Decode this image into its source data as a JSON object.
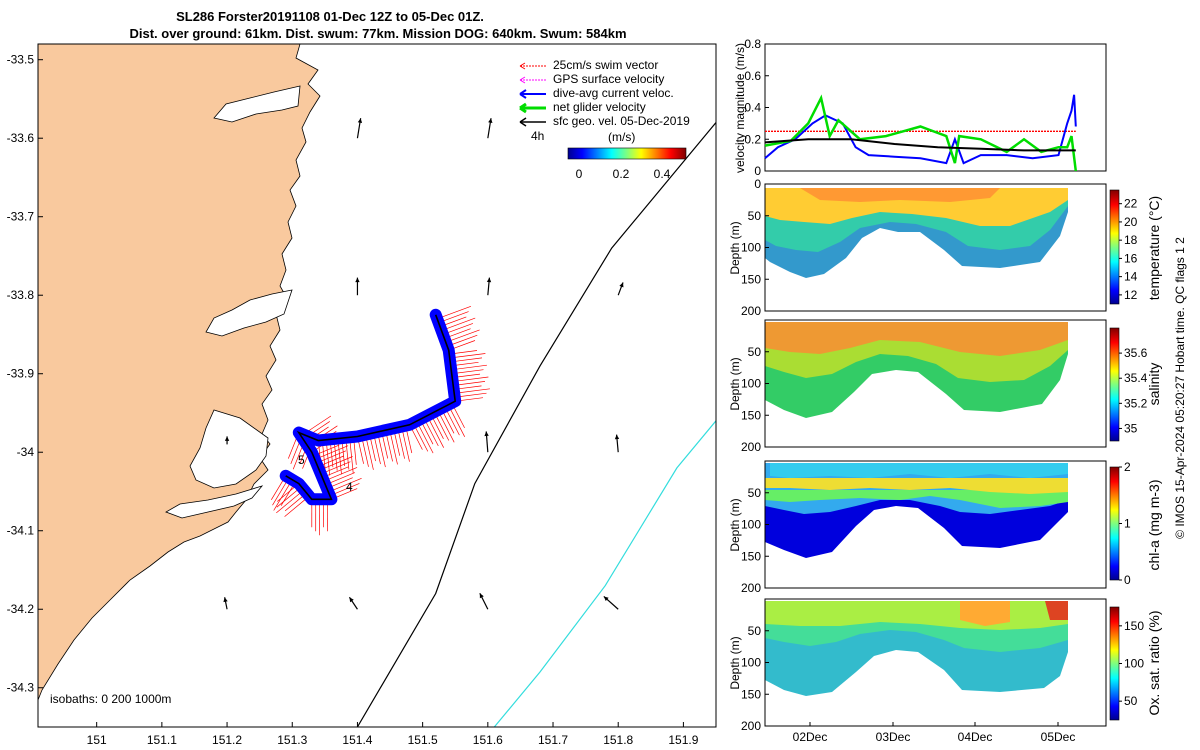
{
  "figure": {
    "title_line1": "SL286 Forster20191108 01-Dec 12Z to 05-Dec 01Z.",
    "title_line2": "Dist. over ground: 61km. Dist. swum: 77km. Mission DOG: 640km. Swum: 584km",
    "credit": "© IMOS 15-Apr-2024 05:20:27 Hobart time. QC flags 1  2"
  },
  "colors": {
    "land": "#F9C99E",
    "swim_vector": "#FF0000",
    "gps_velocity": "#FF00FF",
    "current": "#0000FF",
    "net_velocity": "#00DD00",
    "geostrophic": "#000000",
    "isobath_1000": "#33DDDD"
  },
  "map": {
    "isobaths_label": "isobaths: 0   200  1000m",
    "colorbar_label": "(m/s)",
    "colorbar_ticks": [
      "0",
      "0.2",
      "0.4"
    ],
    "time_label": "4h",
    "markers": [
      "5",
      "4"
    ],
    "legend": [
      {
        "label": "25cm/s swim vector",
        "color": "#FF0000"
      },
      {
        "label": "GPS surface velocity",
        "color": "#FF00FF"
      },
      {
        "label": "dive-avg current veloc.",
        "color": "#0000FF"
      },
      {
        "label": "net glider velocity",
        "color": "#00DD00"
      },
      {
        "label": "sfc geo. vel. 05-Dec-2019",
        "color": "#000000"
      }
    ]
  },
  "chart_data": [
    {
      "type": "line",
      "name": "glider track map",
      "xticks": [
        "151",
        "151.1",
        "151.2",
        "151.3",
        "151.4",
        "151.5",
        "151.6",
        "151.7",
        "151.8",
        "151.9"
      ],
      "yticks": [
        "-33.5",
        "-33.6",
        "-33.7",
        "-33.8",
        "-33.9",
        "-34",
        "-34.1",
        "-34.2",
        "-34.3"
      ],
      "xlim": [
        150.91,
        151.95
      ],
      "ylim": [
        -34.35,
        -33.48
      ],
      "track": [
        [
          151.29,
          -34.03
        ],
        [
          151.31,
          -34.04
        ],
        [
          151.33,
          -34.06
        ],
        [
          151.36,
          -34.06
        ],
        [
          151.33,
          -34.0
        ],
        [
          151.31,
          -33.975
        ],
        [
          151.34,
          -33.985
        ],
        [
          151.4,
          -33.98
        ],
        [
          151.48,
          -33.965
        ],
        [
          151.55,
          -33.935
        ],
        [
          151.54,
          -33.87
        ],
        [
          151.52,
          -33.825
        ]
      ],
      "isobath_200": [
        [
          151.4,
          -34.35
        ],
        [
          151.52,
          -34.18
        ],
        [
          151.58,
          -34.04
        ],
        [
          151.68,
          -33.89
        ],
        [
          151.79,
          -33.74
        ],
        [
          151.95,
          -33.58
        ]
      ],
      "isobath_1000": [
        [
          151.61,
          -34.35
        ],
        [
          151.68,
          -34.28
        ],
        [
          151.78,
          -34.17
        ],
        [
          151.89,
          -34.02
        ],
        [
          151.95,
          -33.96
        ]
      ],
      "geo_vectors": [
        {
          "lon": 151.4,
          "lat": -33.6,
          "u": 0.04,
          "v": 0.25
        },
        {
          "lon": 151.6,
          "lat": -33.6,
          "u": 0.04,
          "v": 0.25
        },
        {
          "lon": 151.4,
          "lat": -33.8,
          "u": 0.0,
          "v": 0.22
        },
        {
          "lon": 151.6,
          "lat": -33.8,
          "u": 0.02,
          "v": 0.22
        },
        {
          "lon": 151.8,
          "lat": -33.8,
          "u": 0.06,
          "v": 0.16
        },
        {
          "lon": 151.2,
          "lat": -33.99,
          "u": 0.0,
          "v": 0.1
        },
        {
          "lon": 151.6,
          "lat": -34.0,
          "u": -0.02,
          "v": 0.26
        },
        {
          "lon": 151.8,
          "lat": -34.0,
          "u": -0.02,
          "v": 0.22
        },
        {
          "lon": 151.2,
          "lat": -34.2,
          "u": -0.03,
          "v": 0.15
        },
        {
          "lon": 151.4,
          "lat": -34.2,
          "u": -0.1,
          "v": 0.15
        },
        {
          "lon": 151.6,
          "lat": -34.2,
          "u": -0.1,
          "v": 0.2
        },
        {
          "lon": 151.8,
          "lat": -34.2,
          "u": -0.18,
          "v": 0.16
        }
      ]
    },
    {
      "type": "line",
      "ylabel": "velocity magnitude (m/s)",
      "ylim": [
        0,
        0.8
      ],
      "yticks": [
        "0",
        "0.2",
        "0.4",
        "0.6",
        "0.8"
      ],
      "xlim": [
        1.5,
        5.45
      ],
      "series": [
        {
          "name": "25cm/s swim vector",
          "x": [
            1.5,
            5.1
          ],
          "values": [
            0.25,
            0.25
          ]
        },
        {
          "name": "dive-avg current veloc.",
          "x": [
            1.5,
            1.65,
            1.85,
            2.05,
            2.2,
            2.4,
            2.55,
            2.7,
            3.0,
            3.3,
            3.6,
            3.7,
            3.8,
            4.0,
            4.3,
            4.6,
            4.9,
            5.0,
            5.05,
            5.08,
            5.1
          ],
          "values": [
            0.08,
            0.15,
            0.2,
            0.3,
            0.35,
            0.3,
            0.15,
            0.1,
            0.09,
            0.08,
            0.05,
            0.2,
            0.05,
            0.1,
            0.1,
            0.08,
            0.1,
            0.3,
            0.38,
            0.48,
            0.28
          ]
        },
        {
          "name": "net glider velocity",
          "x": [
            1.5,
            1.8,
            2.0,
            2.15,
            2.25,
            2.35,
            2.6,
            2.9,
            3.3,
            3.6,
            3.7,
            3.75,
            4.0,
            4.3,
            4.5,
            4.7,
            4.9,
            5.0,
            5.05,
            5.1
          ],
          "values": [
            0.16,
            0.19,
            0.3,
            0.46,
            0.22,
            0.32,
            0.2,
            0.22,
            0.28,
            0.22,
            0.05,
            0.22,
            0.2,
            0.12,
            0.2,
            0.12,
            0.15,
            0.15,
            0.22,
            0.0
          ]
        },
        {
          "name": "sfc geo. vel. 05-Dec-2019",
          "x": [
            1.5,
            2.0,
            2.5,
            3.0,
            3.5,
            4.0,
            4.5,
            5.1
          ],
          "values": [
            0.18,
            0.2,
            0.2,
            0.17,
            0.15,
            0.14,
            0.13,
            0.13
          ]
        }
      ]
    },
    {
      "type": "heatmap",
      "ylabel": "Depth (m)",
      "colorbar_label": "temperature (°C)",
      "colorbar_ticks": [
        "12",
        "14",
        "16",
        "18",
        "20",
        "22"
      ],
      "ylim": [
        200,
        0
      ],
      "yticks": [
        "0",
        "50",
        "100",
        "150",
        "200"
      ]
    },
    {
      "type": "heatmap",
      "ylabel": "Depth (m)",
      "colorbar_label": "salinity",
      "colorbar_ticks": [
        "35",
        "35.2",
        "35.4",
        "35.6"
      ],
      "ylim": [
        200,
        0
      ],
      "yticks": [
        "50",
        "100",
        "150",
        "200"
      ]
    },
    {
      "type": "heatmap",
      "ylabel": "Depth (m)",
      "colorbar_label": "chl-a (mg m-3)",
      "colorbar_ticks": [
        "0",
        "1",
        "2"
      ],
      "ylim": [
        200,
        0
      ],
      "yticks": [
        "50",
        "100",
        "150",
        "200"
      ]
    },
    {
      "type": "heatmap",
      "ylabel": "Depth (m)",
      "colorbar_label": "Ox. sat. ratio (%)",
      "colorbar_ticks": [
        "50",
        "100",
        "150"
      ],
      "ylim": [
        200,
        0
      ],
      "yticks": [
        "50",
        "100",
        "150",
        "200"
      ],
      "xticks": [
        "02Dec",
        "03Dec",
        "04Dec",
        "05Dec"
      ]
    }
  ]
}
